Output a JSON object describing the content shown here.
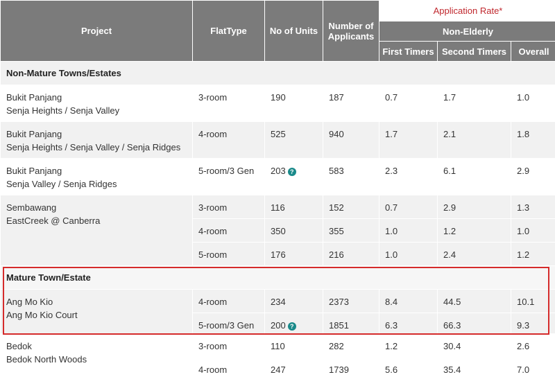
{
  "header": {
    "project": "Project",
    "flat_type": "FlatType",
    "units": "No of Units",
    "applicants_line1": "Number of",
    "applicants_line2": "Applicants",
    "application_rate": "Application Rate*",
    "non_elderly": "Non-Elderly",
    "first_timers": "First Timers",
    "second_timers": "Second Timers",
    "overall": "Overall"
  },
  "sections": {
    "non_mature": "Non-Mature Towns/Estates",
    "mature": "Mature Town/Estate"
  },
  "help_icon_glyph": "?",
  "projects": {
    "p1": {
      "town": "Bukit Panjang",
      "name": "Senja Heights / Senja Valley"
    },
    "p2": {
      "town": "Bukit Panjang",
      "name": "Senja Heights / Senja Valley / Senja Ridges"
    },
    "p3": {
      "town": "Bukit Panjang",
      "name": "Senja Valley / Senja Ridges"
    },
    "p4": {
      "town": "Sembawang",
      "name": "EastCreek @ Canberra"
    },
    "p5": {
      "town": "Ang Mo Kio",
      "name": "Ang Mo Kio Court"
    },
    "p6": {
      "town": "Bedok",
      "name": "Bedok North Woods"
    }
  },
  "rows": [
    {
      "flat": "3-room",
      "units": "190",
      "applicants": "187",
      "first": "0.7",
      "second": "1.7",
      "overall": "1.0"
    },
    {
      "flat": "4-room",
      "units": "525",
      "applicants": "940",
      "first": "1.7",
      "second": "2.1",
      "overall": "1.8"
    },
    {
      "flat": "5-room/3 Gen",
      "units": "203",
      "applicants": "583",
      "first": "2.3",
      "second": "6.1",
      "overall": "2.9"
    },
    {
      "flat": "3-room",
      "units": "116",
      "applicants": "152",
      "first": "0.7",
      "second": "2.9",
      "overall": "1.3"
    },
    {
      "flat": "4-room",
      "units": "350",
      "applicants": "355",
      "first": "1.0",
      "second": "1.2",
      "overall": "1.0"
    },
    {
      "flat": "5-room",
      "units": "176",
      "applicants": "216",
      "first": "1.0",
      "second": "2.4",
      "overall": "1.2"
    },
    {
      "flat": "4-room",
      "units": "234",
      "applicants": "2373",
      "first": "8.4",
      "second": "44.5",
      "overall": "10.1"
    },
    {
      "flat": "5-room/3 Gen",
      "units": "200",
      "applicants": "1851",
      "first": "6.3",
      "second": "66.3",
      "overall": "9.3"
    },
    {
      "flat": "3-room",
      "units": "110",
      "applicants": "282",
      "first": "1.2",
      "second": "30.4",
      "overall": "2.6"
    },
    {
      "flat": "4-room",
      "units": "247",
      "applicants": "1739",
      "first": "5.6",
      "second": "35.4",
      "overall": "7.0"
    }
  ],
  "colors": {
    "header_bg": "#7b7b7b",
    "band_grey": "#f1f1f1",
    "accent_red": "#c0272d",
    "highlight_border": "#d52b2b",
    "help_icon": "#1a8a8a"
  }
}
